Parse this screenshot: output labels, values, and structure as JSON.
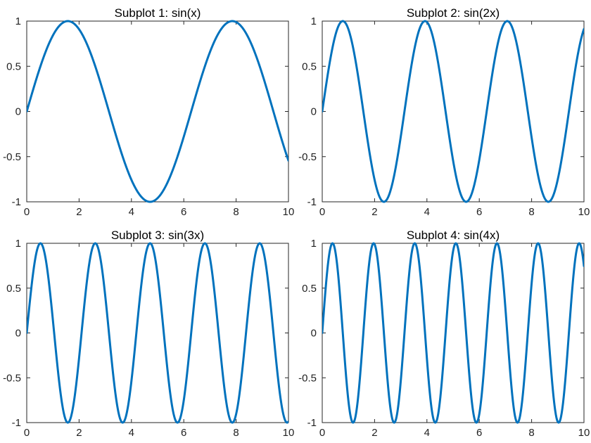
{
  "figure": {
    "line_color": "#0072BD"
  },
  "chart_data": [
    {
      "type": "line",
      "title": "Subplot 1: sin(x)",
      "xlabel": "",
      "ylabel": "",
      "function": "sin(x)",
      "frequency": 1,
      "xlim": [
        0,
        10
      ],
      "ylim": [
        -1,
        1
      ],
      "xticks": [
        0,
        2,
        4,
        6,
        8,
        10
      ],
      "xtick_labels": [
        "0",
        "2",
        "4",
        "6",
        "8",
        "10"
      ],
      "yticks": [
        1,
        0.5,
        0,
        -0.5,
        -1
      ],
      "ytick_labels": [
        "1",
        "0.5",
        "0",
        "-0.5",
        "-1"
      ],
      "grid": false,
      "series": [
        {
          "color": "#0072BD",
          "x": [
            0,
            0.5,
            1,
            1.5,
            2,
            2.5,
            3,
            3.5,
            4,
            4.5,
            5,
            5.5,
            6,
            6.5,
            7,
            7.5,
            8,
            8.5,
            9,
            9.5,
            10
          ],
          "y": [
            0,
            0.479,
            0.841,
            0.997,
            0.909,
            0.598,
            0.141,
            -0.351,
            -0.757,
            -0.978,
            -0.959,
            -0.706,
            -0.279,
            0.215,
            0.657,
            0.938,
            0.989,
            0.798,
            0.412,
            -0.075,
            -0.544
          ]
        }
      ]
    },
    {
      "type": "line",
      "title": "Subplot 2: sin(2x)",
      "xlabel": "",
      "ylabel": "",
      "function": "sin(2x)",
      "frequency": 2,
      "xlim": [
        0,
        10
      ],
      "ylim": [
        -1,
        1
      ],
      "xticks": [
        0,
        2,
        4,
        6,
        8,
        10
      ],
      "xtick_labels": [
        "0",
        "2",
        "4",
        "6",
        "8",
        "10"
      ],
      "yticks": [
        1,
        0.5,
        0,
        -0.5,
        -1
      ],
      "ytick_labels": [
        "1",
        "0.5",
        "0",
        "-0.5",
        "-1"
      ],
      "grid": false,
      "series": [
        {
          "color": "#0072BD",
          "x": [
            0,
            0.5,
            1,
            1.5,
            2,
            2.5,
            3,
            3.5,
            4,
            4.5,
            5,
            5.5,
            6,
            6.5,
            7,
            7.5,
            8,
            8.5,
            9,
            9.5,
            10
          ],
          "y": [
            0,
            0.841,
            0.909,
            0.141,
            -0.757,
            -0.959,
            -0.279,
            0.657,
            0.989,
            0.412,
            -0.544,
            -1.0,
            -0.537,
            0.42,
            0.991,
            0.65,
            -0.288,
            -0.961,
            -0.751,
            0.15,
            0.913
          ]
        }
      ]
    },
    {
      "type": "line",
      "title": "Subplot 3: sin(3x)",
      "xlabel": "",
      "ylabel": "",
      "function": "sin(3x)",
      "frequency": 3,
      "xlim": [
        0,
        10
      ],
      "ylim": [
        -1,
        1
      ],
      "xticks": [
        0,
        2,
        4,
        6,
        8,
        10
      ],
      "xtick_labels": [
        "0",
        "2",
        "4",
        "6",
        "8",
        "10"
      ],
      "yticks": [
        1,
        0.5,
        0,
        -0.5,
        -1
      ],
      "ytick_labels": [
        "1",
        "0.5",
        "0",
        "-0.5",
        "-1"
      ],
      "grid": false,
      "series": [
        {
          "color": "#0072BD",
          "x": [
            0,
            0.5,
            1,
            1.5,
            2,
            2.5,
            3,
            3.5,
            4,
            4.5,
            5,
            5.5,
            6,
            6.5,
            7,
            7.5,
            8,
            8.5,
            9,
            9.5,
            10
          ],
          "y": [
            0,
            0.997,
            0.141,
            -0.978,
            -0.279,
            0.938,
            0.412,
            -0.88,
            -0.537,
            0.804,
            0.65,
            -0.712,
            -0.751,
            0.605,
            0.837,
            -0.488,
            -0.906,
            0.359,
            0.956,
            -0.224,
            -0.988
          ]
        }
      ]
    },
    {
      "type": "line",
      "title": "Subplot 4: sin(4x)",
      "xlabel": "",
      "ylabel": "",
      "function": "sin(4x)",
      "frequency": 4,
      "xlim": [
        0,
        10
      ],
      "ylim": [
        -1,
        1
      ],
      "xticks": [
        0,
        2,
        4,
        6,
        8,
        10
      ],
      "xtick_labels": [
        "0",
        "2",
        "4",
        "6",
        "8",
        "10"
      ],
      "yticks": [
        1,
        0.5,
        0,
        -0.5,
        -1
      ],
      "ytick_labels": [
        "1",
        "0.5",
        "0",
        "-0.5",
        "-1"
      ],
      "grid": false,
      "series": [
        {
          "color": "#0072BD",
          "x": [
            0,
            0.5,
            1,
            1.5,
            2,
            2.5,
            3,
            3.5,
            4,
            4.5,
            5,
            5.5,
            6,
            6.5,
            7,
            7.5,
            8,
            8.5,
            9,
            9.5,
            10
          ],
          "y": [
            0,
            0.909,
            -0.757,
            -0.279,
            0.989,
            -0.544,
            -0.537,
            0.991,
            -0.288,
            -0.751,
            0.913,
            -0.009,
            -0.906,
            0.763,
            0.271,
            -0.988,
            0.551,
            0.53,
            -0.992,
            0.296,
            0.745
          ]
        }
      ]
    }
  ]
}
